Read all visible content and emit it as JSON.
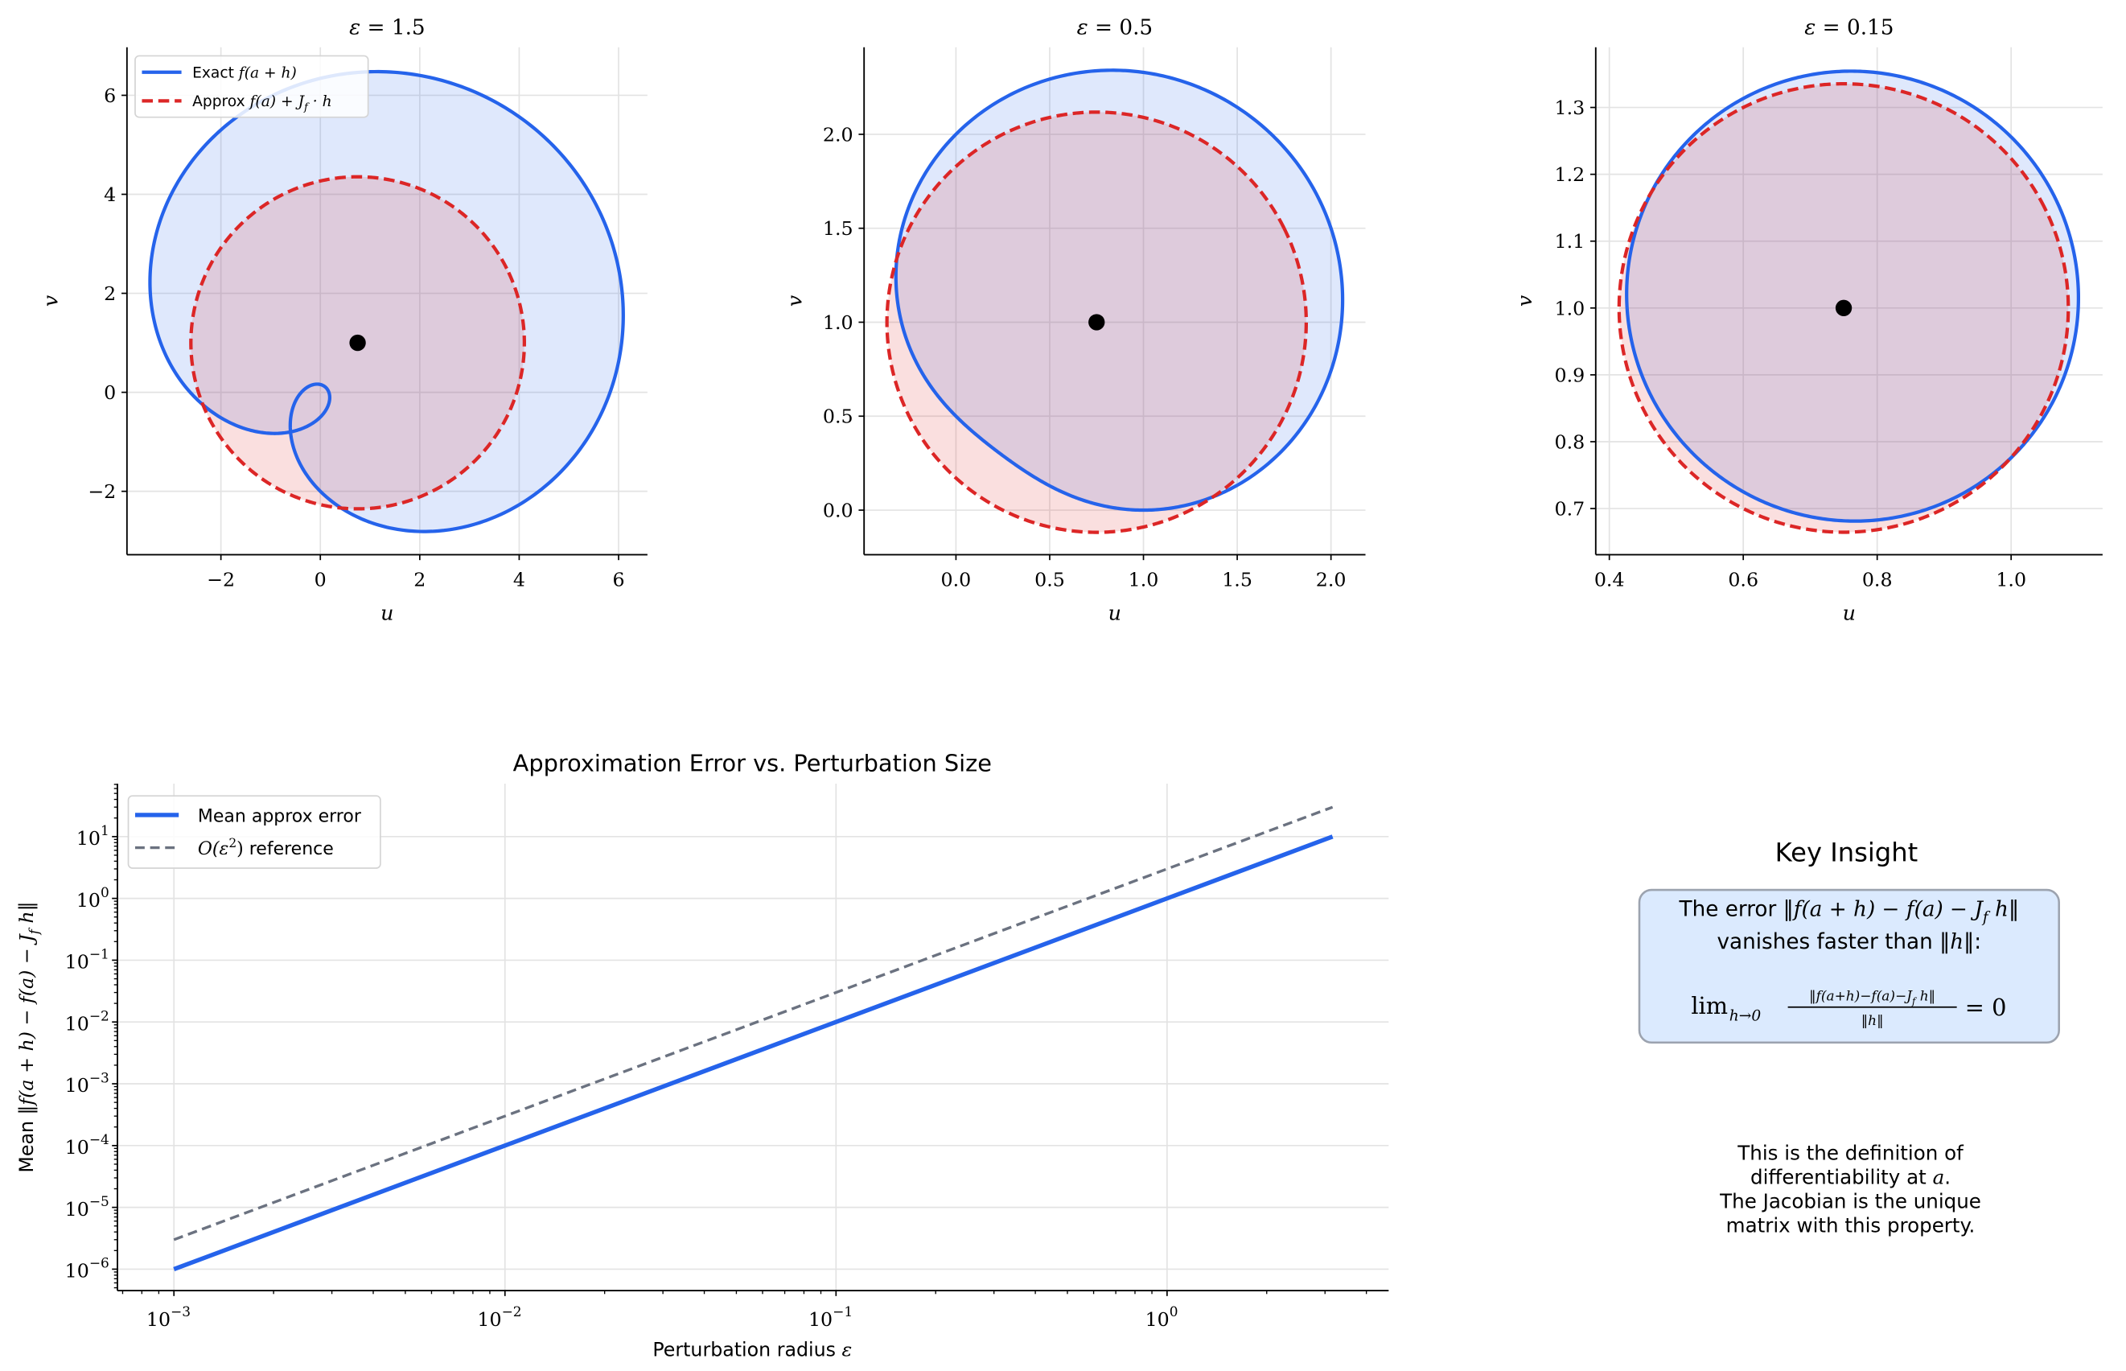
{
  "colors": {
    "exact": "#2563eb",
    "approx": "#dc2626",
    "reference": "#6b7280",
    "center_point": "#000000",
    "insight_box_fill": "#dbeafe",
    "insight_box_border": "#9ca3af"
  },
  "legend_top": {
    "exact": "Exact $f(a + h)$",
    "approx": "Approx $f(a) + J_f · h$"
  },
  "chart_data": [
    {
      "type": "line",
      "title": "$ε$ = 1.5",
      "epsilon": 1.5,
      "center": [
        0.75,
        1.0
      ],
      "xlabel": "$u$",
      "ylabel": "$v$",
      "xlim": [
        -3.89,
        6.58
      ],
      "ylim": [
        -3.28,
        6.97
      ],
      "xticks": [
        -2,
        0,
        2,
        4,
        6
      ],
      "xtick_labels": [
        "−2",
        "0",
        "2",
        "4",
        "6"
      ],
      "yticks": [
        -2,
        0,
        2,
        4,
        6
      ],
      "ytick_labels": [
        "−2",
        "0",
        "2",
        "4",
        "6"
      ],
      "grid": true,
      "legend": "top-left",
      "series": [
        "exact",
        "approx"
      ]
    },
    {
      "type": "line",
      "title": "$ε$ = 0.5",
      "epsilon": 0.5,
      "center": [
        0.75,
        1.0
      ],
      "xlabel": "$u$",
      "ylabel": "$v$",
      "xlim": [
        -0.49,
        2.184
      ],
      "ylim": [
        -0.237,
        2.463
      ],
      "xticks": [
        0,
        0.5,
        1,
        1.5,
        2
      ],
      "xtick_labels": [
        "0.0",
        "0.5",
        "1.0",
        "1.5",
        "2.0"
      ],
      "yticks": [
        0,
        0.5,
        1,
        1.5,
        2
      ],
      "ytick_labels": [
        "0.0",
        "0.5",
        "1.0",
        "1.5",
        "2.0"
      ],
      "grid": true,
      "series": [
        "exact",
        "approx"
      ]
    },
    {
      "type": "line",
      "title": "$ε$ = 0.15",
      "epsilon": 0.15,
      "center": [
        0.75,
        1.0
      ],
      "xlabel": "$u$",
      "ylabel": "$v$",
      "xlim": [
        0.3797,
        1.1366
      ],
      "ylim": [
        0.631,
        1.39
      ],
      "xticks": [
        0.4,
        0.6,
        0.8,
        1.0
      ],
      "xtick_labels": [
        "0.4",
        "0.6",
        "0.8",
        "1.0"
      ],
      "yticks": [
        0.7,
        0.8,
        0.9,
        1.0,
        1.1,
        1.2,
        1.3
      ],
      "ytick_labels": [
        "0.7",
        "0.8",
        "0.9",
        "1.0",
        "1.1",
        "1.2",
        "1.3"
      ],
      "grid": true,
      "series": [
        "exact",
        "approx"
      ]
    },
    {
      "type": "line",
      "title": "Approximation Error vs. Perturbation Size",
      "xlabel": "Perturbation radius $ε$",
      "ylabel": "Mean ‖$f(a + h) − f(a) − J_f h$‖",
      "xscale": "log",
      "yscale": "log",
      "xlim": [
        0.000675,
        4.67
      ],
      "ylim": [
        4.5e-07,
        72
      ],
      "xticks_exp": [
        "−3",
        "−2",
        "−1",
        "0"
      ],
      "yticks_exp": [
        "−6",
        "−5",
        "−4",
        "−3",
        "−2",
        "−1",
        "0",
        "1"
      ],
      "tick_base": "10",
      "grid": true,
      "legend": "top-left",
      "x": [
        0.001,
        0.01,
        0.1,
        1,
        3.162
      ],
      "series": [
        {
          "name": "Mean approx error",
          "values": [
            1e-06,
            0.0001,
            0.01,
            1,
            10
          ],
          "style": "solid"
        },
        {
          "name": "$O(ε^2)$ reference",
          "values": [
            3e-06,
            0.0003,
            0.03,
            3,
            30
          ],
          "style": "dashed"
        }
      ]
    }
  ],
  "insight": {
    "title": "Key Insight",
    "box_line1": "The error ‖$f(a + h) − f(a) − J_f h$‖",
    "box_line2": "vanishes faster than ‖$h$‖:",
    "limit_prefix": "lim",
    "limit_subscript": "$h→0$",
    "limit_numerator": "‖$f(a+h)−f(a)−J_f h$‖",
    "limit_denominator": "‖$h$‖",
    "limit_rhs": "= 0",
    "note_lines": [
      "This is the definition of",
      "differentiability at $a$.",
      "The Jacobian is the unique",
      "matrix with this property."
    ]
  }
}
